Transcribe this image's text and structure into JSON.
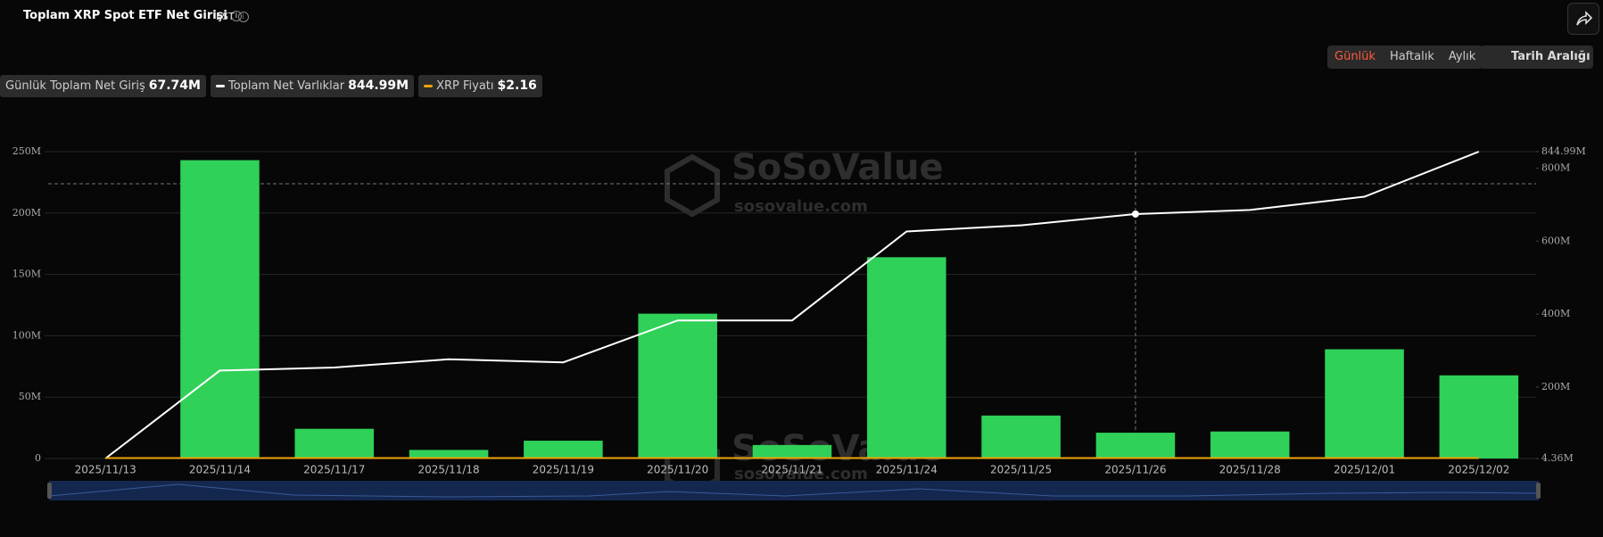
{
  "header": {
    "title": "Toplam XRP Spot ETF Net Girişi",
    "timezone": "EST",
    "tabs": [
      "Günlük",
      "Haftalık",
      "Aylık"
    ],
    "date_range": "Tarih Aralığı"
  },
  "watermark": {
    "brand": "SoSoValue",
    "site": "sosovalue.com"
  },
  "chart_data": {
    "type": "bar",
    "categories": [
      "2025/11/13",
      "2025/11/14",
      "2025/11/17",
      "2025/11/18",
      "2025/11/19",
      "2025/11/20",
      "2025/11/21",
      "2025/11/24",
      "2025/11/25",
      "2025/11/26",
      "2025/11/28",
      "2025/12/01",
      "2025/12/02"
    ],
    "series": [
      {
        "name": "Günlük Toplam Net Giriş",
        "color": "#2fd158",
        "values": [
          0,
          243.05,
          24.2,
          7,
          14.5,
          118,
          11,
          164,
          35,
          21,
          22,
          89,
          67.74
        ]
      },
      {
        "name": "Toplam Net Varlıklar",
        "color": "#ffffff",
        "axis": "y2",
        "values": [
          4.36,
          245.3,
          253.7,
          276.1,
          267.7,
          382.6,
          382.6,
          626.4,
          643.2,
          674,
          685.2,
          721.6,
          844.99
        ]
      }
    ],
    "price_series": {
      "name": "XRP Fiyatı",
      "color": "#f0a30a"
    },
    "readouts": [
      "67.74M",
      "844.99M",
      "$2.16"
    ],
    "ylim": [
      0,
      250
    ],
    "yticks": [
      0,
      {
        "value": 50,
        "label": "50M"
      },
      {
        "value": 100,
        "label": "100M"
      },
      {
        "value": 150,
        "label": "150M"
      },
      {
        "value": 200,
        "label": "200M"
      },
      {
        "value": 250,
        "label": "250M"
      }
    ],
    "y2lim": [
      4.36,
      844.99
    ],
    "y2ticks": [
      {
        "value": 4.36,
        "label": "4.36M"
      },
      {
        "value": 200,
        "label": "200M"
      },
      {
        "value": 400,
        "label": "400M"
      },
      {
        "value": 600,
        "label": "600M"
      },
      {
        "value": 800,
        "label": "800M"
      },
      {
        "value": 844.99,
        "label": "844.99M"
      }
    ],
    "grid": true
  }
}
